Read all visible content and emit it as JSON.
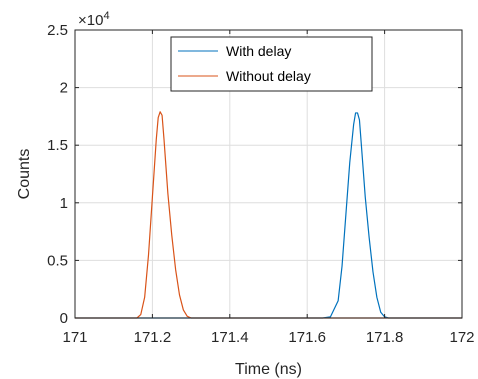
{
  "chart_data": {
    "type": "line",
    "xlabel": "Time (ns)",
    "ylabel": "Counts",
    "xlim": [
      171,
      172
    ],
    "ylim": [
      0,
      25000
    ],
    "x_ticks": [
      171,
      171.2,
      171.4,
      171.6,
      171.8,
      172
    ],
    "x_tick_labels": [
      "171",
      "171.2",
      "171.4",
      "171.6",
      "171.8",
      "172"
    ],
    "y_ticks": [
      0,
      5000,
      10000,
      15000,
      20000,
      25000
    ],
    "y_tick_labels": [
      "0",
      "0.5",
      "1",
      "1.5",
      "2",
      "2.5"
    ],
    "y_exponent_label": "×10",
    "y_exponent_power": "4",
    "grid": true,
    "legend_position": "top-center",
    "series": [
      {
        "name": "With delay",
        "color": "#0072BD",
        "x": [
          171.0,
          171.64,
          171.66,
          171.68,
          171.69,
          171.7,
          171.71,
          171.72,
          171.725,
          171.73,
          171.735,
          171.74,
          171.75,
          171.76,
          171.77,
          171.78,
          171.79,
          171.8,
          171.81,
          172.0
        ],
        "y": [
          0,
          0,
          100,
          1500,
          4500,
          9000,
          13500,
          16800,
          17800,
          17800,
          17200,
          15000,
          10500,
          7000,
          4000,
          1800,
          500,
          100,
          0,
          0
        ]
      },
      {
        "name": "Without delay",
        "color": "#D95319",
        "x": [
          171.0,
          171.16,
          171.17,
          171.18,
          171.19,
          171.2,
          171.21,
          171.215,
          171.22,
          171.225,
          171.23,
          171.24,
          171.25,
          171.26,
          171.27,
          171.28,
          171.29,
          171.3,
          172.0
        ],
        "y": [
          0,
          0,
          300,
          1800,
          5500,
          10500,
          15500,
          17400,
          17900,
          17600,
          15500,
          10800,
          7200,
          4200,
          2000,
          700,
          150,
          0,
          0
        ]
      }
    ]
  }
}
